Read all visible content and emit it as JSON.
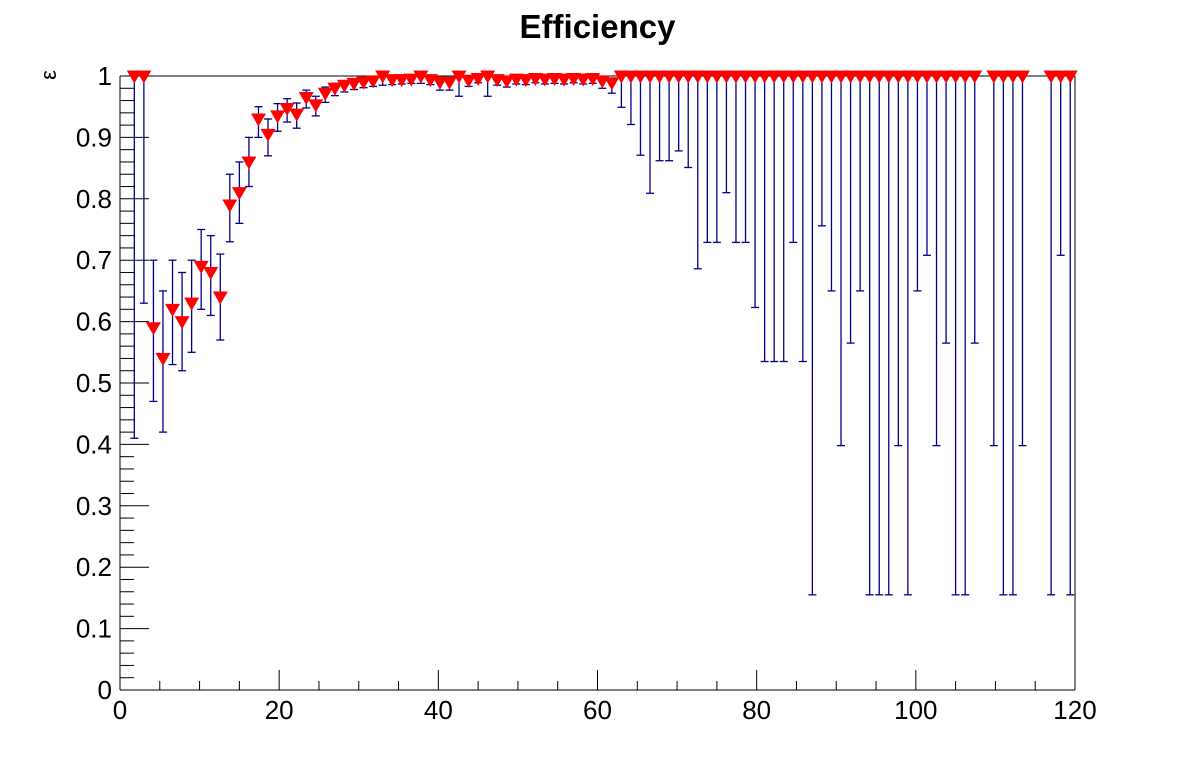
{
  "title": "Efficiency",
  "axes": {
    "y_title": "ε",
    "x_tick_labels": [
      "0",
      "20",
      "40",
      "60",
      "80",
      "100",
      "120"
    ],
    "x_tick_values": [
      0,
      20,
      40,
      60,
      80,
      100,
      120
    ],
    "x_minor_step": 5,
    "y_tick_labels": [
      "0",
      "0.1",
      "0.2",
      "0.3",
      "0.4",
      "0.5",
      "0.6",
      "0.7",
      "0.8",
      "0.9",
      "1"
    ],
    "y_tick_values": [
      0,
      0.1,
      0.2,
      0.3,
      0.4,
      0.5,
      0.6,
      0.7,
      0.8,
      0.9,
      1
    ],
    "y_minor_step": 0.02
  },
  "colors": {
    "marker": "#ff0000",
    "error_bar": "#00008c",
    "axis": "#000000",
    "background": "#ffffff"
  },
  "chart_data": {
    "type": "scatter",
    "title": "Efficiency",
    "xlabel": "",
    "ylabel": "ε",
    "xlim": [
      0,
      120
    ],
    "ylim": [
      0,
      1
    ],
    "legend": "none",
    "grid": false,
    "marker_style": "triangle-down",
    "reference_line_y": 1.0,
    "points_format": "[x, efficiency, err_low_bound, err_high_bound]",
    "points": [
      [
        1.8,
        1.0,
        0.41,
        1.0
      ],
      [
        3.0,
        1.0,
        0.63,
        1.0
      ],
      [
        4.2,
        0.59,
        0.47,
        0.7
      ],
      [
        5.4,
        0.54,
        0.42,
        0.65
      ],
      [
        6.6,
        0.62,
        0.53,
        0.7
      ],
      [
        7.8,
        0.6,
        0.52,
        0.68
      ],
      [
        9.0,
        0.63,
        0.55,
        0.7
      ],
      [
        10.2,
        0.69,
        0.62,
        0.75
      ],
      [
        11.4,
        0.68,
        0.61,
        0.74
      ],
      [
        12.6,
        0.64,
        0.57,
        0.71
      ],
      [
        13.8,
        0.79,
        0.73,
        0.84
      ],
      [
        15.0,
        0.81,
        0.76,
        0.86
      ],
      [
        16.2,
        0.86,
        0.82,
        0.9
      ],
      [
        17.4,
        0.93,
        0.9,
        0.95
      ],
      [
        18.6,
        0.905,
        0.87,
        0.93
      ],
      [
        19.8,
        0.935,
        0.91,
        0.955
      ],
      [
        21.0,
        0.947,
        0.925,
        0.963
      ],
      [
        22.2,
        0.938,
        0.915,
        0.956
      ],
      [
        23.4,
        0.965,
        0.948,
        0.977
      ],
      [
        24.6,
        0.953,
        0.935,
        0.967
      ],
      [
        25.8,
        0.972,
        0.957,
        0.982
      ],
      [
        27.0,
        0.98,
        0.968,
        0.988
      ],
      [
        28.2,
        0.985,
        0.974,
        0.991
      ],
      [
        29.4,
        0.988,
        0.978,
        0.993
      ],
      [
        30.6,
        0.99,
        0.981,
        0.995
      ],
      [
        31.8,
        0.992,
        0.983,
        0.996
      ],
      [
        33.0,
        1.0,
        0.985,
        1.0
      ],
      [
        34.2,
        0.994,
        0.986,
        0.997
      ],
      [
        35.4,
        0.994,
        0.987,
        0.998
      ],
      [
        36.6,
        0.995,
        0.988,
        0.998
      ],
      [
        37.8,
        1.0,
        0.988,
        1.0
      ],
      [
        39.0,
        0.994,
        0.986,
        0.998
      ],
      [
        40.2,
        0.99,
        0.977,
        0.996
      ],
      [
        41.4,
        0.99,
        0.977,
        0.996
      ],
      [
        42.6,
        1.0,
        0.967,
        1.0
      ],
      [
        43.8,
        0.993,
        0.983,
        0.997
      ],
      [
        45.0,
        0.996,
        0.989,
        0.999
      ],
      [
        46.2,
        1.0,
        0.967,
        1.0
      ],
      [
        47.4,
        0.994,
        0.985,
        0.998
      ],
      [
        48.6,
        0.992,
        0.982,
        0.997
      ],
      [
        49.8,
        0.995,
        0.987,
        0.998
      ],
      [
        51.0,
        0.994,
        0.986,
        0.998
      ],
      [
        52.2,
        0.996,
        0.989,
        0.999
      ],
      [
        53.4,
        0.995,
        0.987,
        0.998
      ],
      [
        54.6,
        0.996,
        0.988,
        0.999
      ],
      [
        55.8,
        0.995,
        0.987,
        0.998
      ],
      [
        57.0,
        0.996,
        0.989,
        0.999
      ],
      [
        58.2,
        0.995,
        0.987,
        0.998
      ],
      [
        59.4,
        0.996,
        0.988,
        0.999
      ],
      [
        60.6,
        0.992,
        0.98,
        0.997
      ],
      [
        61.8,
        0.989,
        0.972,
        0.996
      ],
      [
        63.0,
        1.0,
        0.949,
        1.0
      ],
      [
        64.2,
        1.0,
        0.921,
        1.0
      ],
      [
        65.4,
        1.0,
        0.871,
        1.0
      ],
      [
        66.6,
        1.0,
        0.809,
        1.0
      ],
      [
        67.8,
        1.0,
        0.862,
        1.0
      ],
      [
        69.0,
        1.0,
        0.862,
        1.0
      ],
      [
        70.2,
        1.0,
        0.878,
        1.0
      ],
      [
        71.4,
        1.0,
        0.851,
        1.0
      ],
      [
        72.6,
        1.0,
        0.686,
        1.0
      ],
      [
        73.8,
        1.0,
        0.729,
        1.0
      ],
      [
        75.0,
        1.0,
        0.729,
        1.0
      ],
      [
        76.2,
        1.0,
        0.81,
        1.0
      ],
      [
        77.4,
        1.0,
        0.729,
        1.0
      ],
      [
        78.6,
        1.0,
        0.729,
        1.0
      ],
      [
        79.8,
        1.0,
        0.623,
        1.0
      ],
      [
        81.0,
        1.0,
        0.535,
        1.0
      ],
      [
        82.2,
        1.0,
        0.535,
        1.0
      ],
      [
        83.4,
        1.0,
        0.535,
        1.0
      ],
      [
        84.6,
        1.0,
        0.729,
        1.0
      ],
      [
        85.8,
        1.0,
        0.535,
        1.0
      ],
      [
        87.0,
        1.0,
        0.155,
        1.0
      ],
      [
        88.2,
        1.0,
        0.756,
        1.0
      ],
      [
        89.4,
        1.0,
        0.65,
        1.0
      ],
      [
        90.6,
        1.0,
        0.398,
        1.0
      ],
      [
        91.8,
        1.0,
        0.565,
        1.0
      ],
      [
        93.0,
        1.0,
        0.65,
        1.0
      ],
      [
        94.2,
        1.0,
        0.155,
        1.0
      ],
      [
        95.4,
        1.0,
        0.155,
        1.0
      ],
      [
        96.6,
        1.0,
        0.155,
        1.0
      ],
      [
        97.8,
        1.0,
        0.398,
        1.0
      ],
      [
        99.0,
        1.0,
        0.155,
        1.0
      ],
      [
        100.2,
        1.0,
        0.65,
        1.0
      ],
      [
        101.4,
        1.0,
        0.708,
        1.0
      ],
      [
        102.6,
        1.0,
        0.398,
        1.0
      ],
      [
        103.8,
        1.0,
        0.565,
        1.0
      ],
      [
        105.0,
        1.0,
        0.155,
        1.0
      ],
      [
        106.2,
        1.0,
        0.155,
        1.0
      ],
      [
        107.4,
        1.0,
        0.565,
        1.0
      ],
      [
        109.8,
        1.0,
        0.398,
        1.0
      ],
      [
        111.0,
        1.0,
        0.155,
        1.0
      ],
      [
        112.2,
        1.0,
        0.155,
        1.0
      ],
      [
        113.4,
        1.0,
        0.398,
        1.0
      ],
      [
        117.0,
        1.0,
        0.155,
        1.0
      ],
      [
        118.2,
        1.0,
        0.708,
        1.0
      ],
      [
        119.4,
        1.0,
        0.155,
        1.0
      ]
    ]
  }
}
